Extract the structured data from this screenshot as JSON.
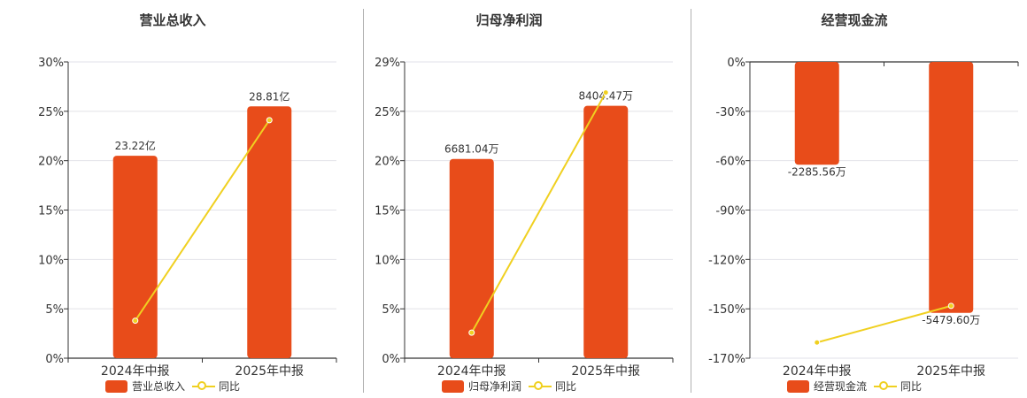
{
  "colors": {
    "bar": "#e84c1a",
    "line": "#f0d020",
    "grid": "#e2e2e8",
    "axis": "#333333"
  },
  "chart_data": [
    {
      "type": "bar",
      "title": "营业总收入",
      "categories": [
        "2024年中报",
        "2025年中报"
      ],
      "series": [
        {
          "name": "营业总收入",
          "type": "bar",
          "values": [
            20.5,
            25.5
          ],
          "labels": [
            "23.22亿",
            "28.81亿"
          ]
        },
        {
          "name": "同比",
          "type": "line",
          "values": [
            3.8,
            24.1
          ]
        }
      ],
      "yticks": [
        "30%",
        "25%",
        "20%",
        "15%",
        "10%",
        "5%",
        "0%"
      ],
      "ylim": [
        0,
        30
      ],
      "grid": true,
      "legend": "bottom"
    },
    {
      "type": "bar",
      "title": "归母净利润",
      "categories": [
        "2024年中报",
        "2025年中报"
      ],
      "series": [
        {
          "name": "归母净利润",
          "type": "bar",
          "values": [
            19.5,
            24.7
          ],
          "labels": [
            "6681.04万",
            "8404.47万"
          ]
        },
        {
          "name": "同比",
          "type": "line",
          "values": [
            2.5,
            26.0
          ]
        }
      ],
      "yticks": [
        "29%",
        "25%",
        "20%",
        "15%",
        "10%",
        "5%",
        "0%"
      ],
      "ylim": [
        0,
        29
      ],
      "grid": true,
      "legend": "bottom"
    },
    {
      "type": "bar",
      "title": "经营现金流",
      "categories": [
        "2024年中报",
        "2025年中报"
      ],
      "series": [
        {
          "name": "经营现金流",
          "type": "bar",
          "values": [
            -59,
            -144
          ],
          "labels": [
            "-2285.56万",
            "-5479.60万"
          ]
        },
        {
          "name": "同比",
          "type": "line",
          "values": [
            -161,
            -140
          ]
        }
      ],
      "yticks": [
        "0%",
        "-30%",
        "-60%",
        "-90%",
        "-120%",
        "-150%",
        "-170%"
      ],
      "ylim": [
        -170,
        0
      ],
      "grid": true,
      "legend": "bottom"
    }
  ]
}
